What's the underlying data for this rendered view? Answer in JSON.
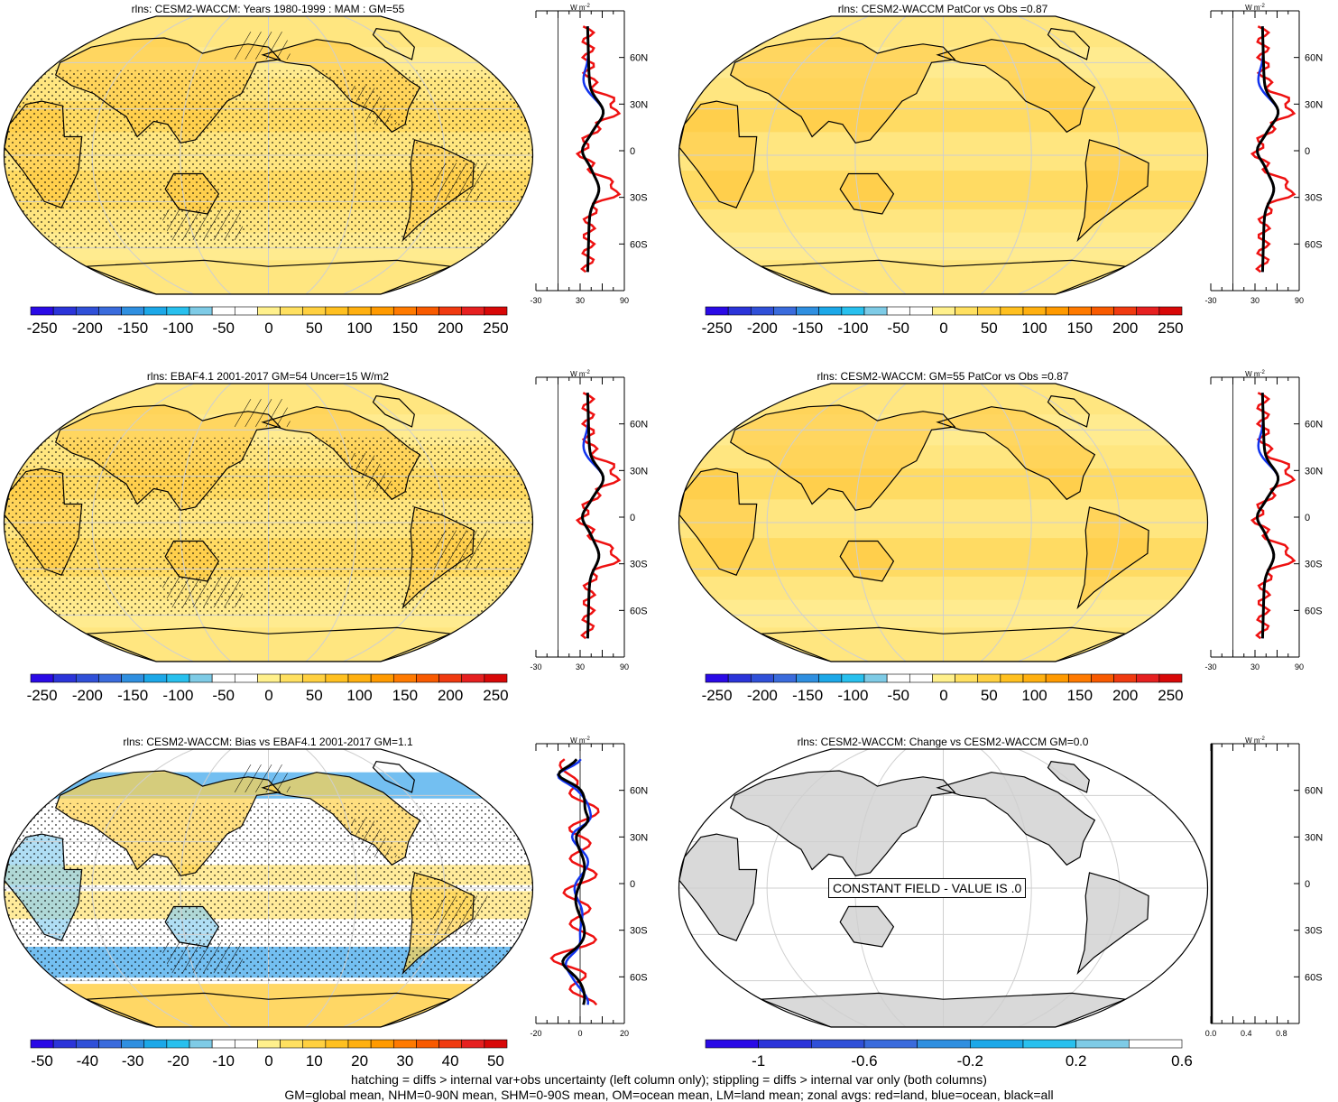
{
  "panels": [
    {
      "id": "p1",
      "title": "rlns: CESM2-WACCM: Years 1980-1999 : MAM : GM=55",
      "map_kind": "abs",
      "hatch": "hatch+stipple",
      "zonal_ticks": [
        "-30",
        "30",
        "90"
      ],
      "zonal_range": [
        -30,
        90
      ],
      "colorbar": "abs"
    },
    {
      "id": "p2",
      "title": "rlns: CESM2-WACCM PatCor vs Obs =0.87",
      "map_kind": "abs",
      "hatch": "none",
      "zonal_ticks": [
        "-30",
        "30",
        "90"
      ],
      "zonal_range": [
        -30,
        90
      ],
      "colorbar": "abs"
    },
    {
      "id": "p3",
      "title": "rlns: EBAF4.1 2001-2017 GM=54 Uncer=15 W/m2",
      "map_kind": "abs",
      "hatch": "hatch+stipple",
      "zonal_ticks": [
        "-30",
        "30",
        "90"
      ],
      "zonal_range": [
        -30,
        90
      ],
      "colorbar": "abs"
    },
    {
      "id": "p4",
      "title": "rlns: CESM2-WACCM: GM=55 PatCor vs Obs =0.87",
      "map_kind": "abs",
      "hatch": "none",
      "zonal_ticks": [
        "-30",
        "30",
        "90"
      ],
      "zonal_range": [
        -30,
        90
      ],
      "colorbar": "abs"
    },
    {
      "id": "p5",
      "title": "rlns: CESM2-WACCM: Bias vs EBAF4.1 2001-2017 GM=1.1",
      "map_kind": "bias",
      "hatch": "hatch+stipple",
      "zonal_ticks": [
        "-20",
        "0",
        "20"
      ],
      "zonal_range": [
        -20,
        20
      ],
      "colorbar": "bias"
    },
    {
      "id": "p6",
      "title": "rlns: CESM2-WACCM: Change vs CESM2-WACCM GM=0.0",
      "map_kind": "constant",
      "hatch": "none",
      "zonal_ticks": [
        "0.0",
        "0.4",
        "0.8"
      ],
      "zonal_range": [
        0,
        1
      ],
      "colorbar": "change",
      "constant_label": "CONSTANT FIELD - VALUE IS .0"
    }
  ],
  "zonal_units": "W m",
  "zonal_units_sup": "-2",
  "lat_ticks": [
    "60N",
    "30N",
    "0",
    "30S",
    "60S"
  ],
  "colorbars": {
    "abs": {
      "labels": [
        "-250",
        "-200",
        "-150",
        "-100",
        "-50",
        "0",
        "50",
        "100",
        "150",
        "200",
        "250"
      ],
      "colors": [
        "#2a0ae6",
        "#2b34d9",
        "#3050d8",
        "#3a6bdc",
        "#2f8fe0",
        "#1ca8e8",
        "#28c0ee",
        "#7ecbe6",
        "#ffffff",
        "#ffffff",
        "#fff08c",
        "#ffe060",
        "#ffd040",
        "#ffc020",
        "#ffb010",
        "#ff9a00",
        "#ff7a00",
        "#f85a00",
        "#f03a10",
        "#e62020",
        "#d80808"
      ]
    },
    "bias": {
      "labels": [
        "-50",
        "-40",
        "-30",
        "-20",
        "-10",
        "0",
        "10",
        "20",
        "30",
        "40",
        "50"
      ],
      "colors": [
        "#2a0ae6",
        "#2b34d9",
        "#3050d8",
        "#3a6bdc",
        "#2f8fe0",
        "#1ca8e8",
        "#28c0ee",
        "#7ecbe6",
        "#ffffff",
        "#ffffff",
        "#fff08c",
        "#ffe060",
        "#ffd040",
        "#ffc020",
        "#ffb010",
        "#ff9a00",
        "#ff7a00",
        "#f85a00",
        "#f03a10",
        "#e62020",
        "#d80808"
      ]
    },
    "change": {
      "labels": [
        "-1",
        "-0.6",
        "-0.2",
        "0.2",
        "0.6"
      ],
      "colors": [
        "#2a0ae6",
        "#2b34d9",
        "#3050d8",
        "#3a6bdc",
        "#2f8fe0",
        "#1ca8e8",
        "#28c0ee",
        "#7ecbe6",
        "#ffffff"
      ]
    }
  },
  "palette": {
    "land_red": "#ee1111",
    "ocean_blue": "#1133ee",
    "all_black": "#000000",
    "base_yellow": "#ffe680",
    "orange": "#ffb830",
    "bias_blue": "#5ab4ee"
  },
  "footer": {
    "line1": "hatching = diffs > internal var+obs uncertainty (left column only); stippling = diffs > internal var only (both columns)",
    "line2": "GM=global mean, NHM=0-90N mean, SHM=0-90S mean, OM=ocean mean, LM=land mean; zonal avgs: red=land, blue=ocean, black=all"
  }
}
